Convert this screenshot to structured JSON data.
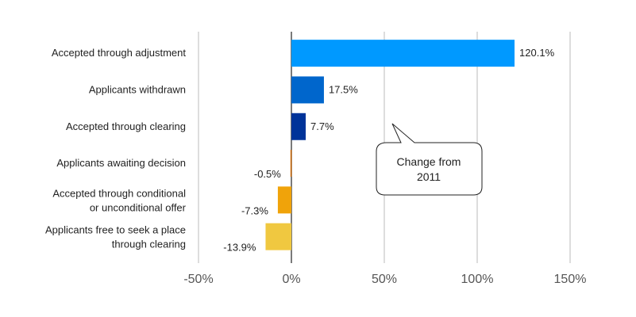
{
  "chart_data": {
    "type": "bar",
    "orientation": "horizontal",
    "categories": [
      "Accepted through adjustment",
      "Applicants withdrawn",
      "Accepted through clearing",
      "Applicants awaiting decision",
      "Accepted through conditional or unconditional offer",
      "Applicants free to seek a place through clearing"
    ],
    "category_lines": [
      [
        "Accepted through adjustment"
      ],
      [
        "Applicants withdrawn"
      ],
      [
        "Accepted through clearing"
      ],
      [
        "Applicants awaiting decision"
      ],
      [
        "Accepted through conditional",
        "or unconditional offer"
      ],
      [
        "Applicants free to seek a place",
        "through clearing"
      ]
    ],
    "values": [
      120.1,
      17.5,
      7.7,
      -0.5,
      -7.3,
      -13.9
    ],
    "value_labels": [
      "120.1%",
      "17.5%",
      "7.7%",
      "-0.5%",
      "-7.3%",
      "-13.9%"
    ],
    "colors": [
      "#0099FF",
      "#0066CC",
      "#003399",
      "#CC6600",
      "#F0A30A",
      "#F0C840"
    ],
    "xlim": [
      -50,
      150
    ],
    "xticks": [
      -50,
      0,
      50,
      100,
      150
    ],
    "xtick_labels": [
      "-50%",
      "0%",
      "50%",
      "100%",
      "150%"
    ],
    "grid": true,
    "annotation": {
      "lines": [
        "Change from",
        "2011"
      ]
    }
  }
}
